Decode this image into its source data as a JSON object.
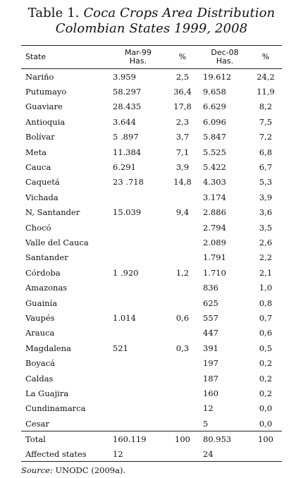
{
  "title": {
    "prefix": "Table 1.",
    "main": "Coca Crops Area Distribution Colombian States 1999, 2008"
  },
  "headers": {
    "state": "State",
    "mar99_line1": "Mar-99",
    "mar99_line2": "Has.",
    "pct1": "%",
    "dec08_line1": "Dec-08",
    "dec08_line2": "Has.",
    "pct2": "%"
  },
  "rows": [
    {
      "state": "Nariño",
      "mar99": "3.959",
      "pct99": "2,5",
      "dec08": "19.612",
      "pct08": "24,2"
    },
    {
      "state": "Putumayo",
      "mar99": "58.297",
      "pct99": "36,4",
      "dec08": "9.658",
      "pct08": "11,9"
    },
    {
      "state": "Guaviare",
      "mar99": "28.435",
      "pct99": "17,8",
      "dec08": "6.629",
      "pct08": "8,2"
    },
    {
      "state": "Antioquia",
      "mar99": "3.644",
      "pct99": "2,3",
      "dec08": "6.096",
      "pct08": "7,5"
    },
    {
      "state": "Bolívar",
      "mar99": "5 .897",
      "pct99": "3,7",
      "dec08": "5.847",
      "pct08": "7,2"
    },
    {
      "state": "Meta",
      "mar99": "11.384",
      "pct99": "7,1",
      "dec08": "5.525",
      "pct08": "6,8"
    },
    {
      "state": "Cauca",
      "mar99": "6.291",
      "pct99": "3,9",
      "dec08": "5.422",
      "pct08": "6,7"
    },
    {
      "state": "Caquetá",
      "mar99": "23 .718",
      "pct99": "14,8",
      "dec08": "4.303",
      "pct08": "5,3"
    },
    {
      "state": "Vichada",
      "mar99": "",
      "pct99": "",
      "dec08": "3.174",
      "pct08": "3,9"
    },
    {
      "state": "N, Santander",
      "mar99": "15.039",
      "pct99": "9,4",
      "dec08": "2.886",
      "pct08": "3,6"
    },
    {
      "state": "Chocó",
      "mar99": "",
      "pct99": "",
      "dec08": "2.794",
      "pct08": "3,5"
    },
    {
      "state": "Valle del Cauca",
      "mar99": "",
      "pct99": "",
      "dec08": "2.089",
      "pct08": "2,6"
    },
    {
      "state": "Santander",
      "mar99": "",
      "pct99": "",
      "dec08": "1.791",
      "pct08": "2,2"
    },
    {
      "state": "Córdoba",
      "mar99": "1 .920",
      "pct99": "1,2",
      "dec08": "1.710",
      "pct08": "2,1"
    },
    {
      "state": "Amazonas",
      "mar99": "",
      "pct99": "",
      "dec08": "836",
      "pct08": "1,0"
    },
    {
      "state": "Guainía",
      "mar99": "",
      "pct99": "",
      "dec08": "625",
      "pct08": "0,8"
    },
    {
      "state": "Vaupés",
      "mar99": "1.014",
      "pct99": "0,6",
      "dec08": "557",
      "pct08": "0,7"
    },
    {
      "state": "Arauca",
      "mar99": "",
      "pct99": "",
      "dec08": "447",
      "pct08": "0,6"
    },
    {
      "state": "Magdalena",
      "mar99": "521",
      "pct99": "0,3",
      "dec08": "391",
      "pct08": "0,5"
    },
    {
      "state": "Boyacá",
      "mar99": "",
      "pct99": "",
      "dec08": "197",
      "pct08": "0,2"
    },
    {
      "state": "Caldas",
      "mar99": "",
      "pct99": "",
      "dec08": "187",
      "pct08": "0,2"
    },
    {
      "state": "La Guajira",
      "mar99": "",
      "pct99": "",
      "dec08": "160",
      "pct08": "0,2"
    },
    {
      "state": "Cundinamarca",
      "mar99": "",
      "pct99": "",
      "dec08": "12",
      "pct08": "0,0"
    },
    {
      "state": "Cesar",
      "mar99": "",
      "pct99": "",
      "dec08": "5",
      "pct08": "0,0"
    }
  ],
  "total": {
    "label": "Total",
    "mar99": "160.119",
    "pct99": "100",
    "dec08": "80.953",
    "pct08": "100"
  },
  "affected": {
    "label": "Affected states",
    "mar99": "12",
    "dec08": "24"
  },
  "source": {
    "label": "Source:",
    "text": "UNODC (2009a)."
  }
}
